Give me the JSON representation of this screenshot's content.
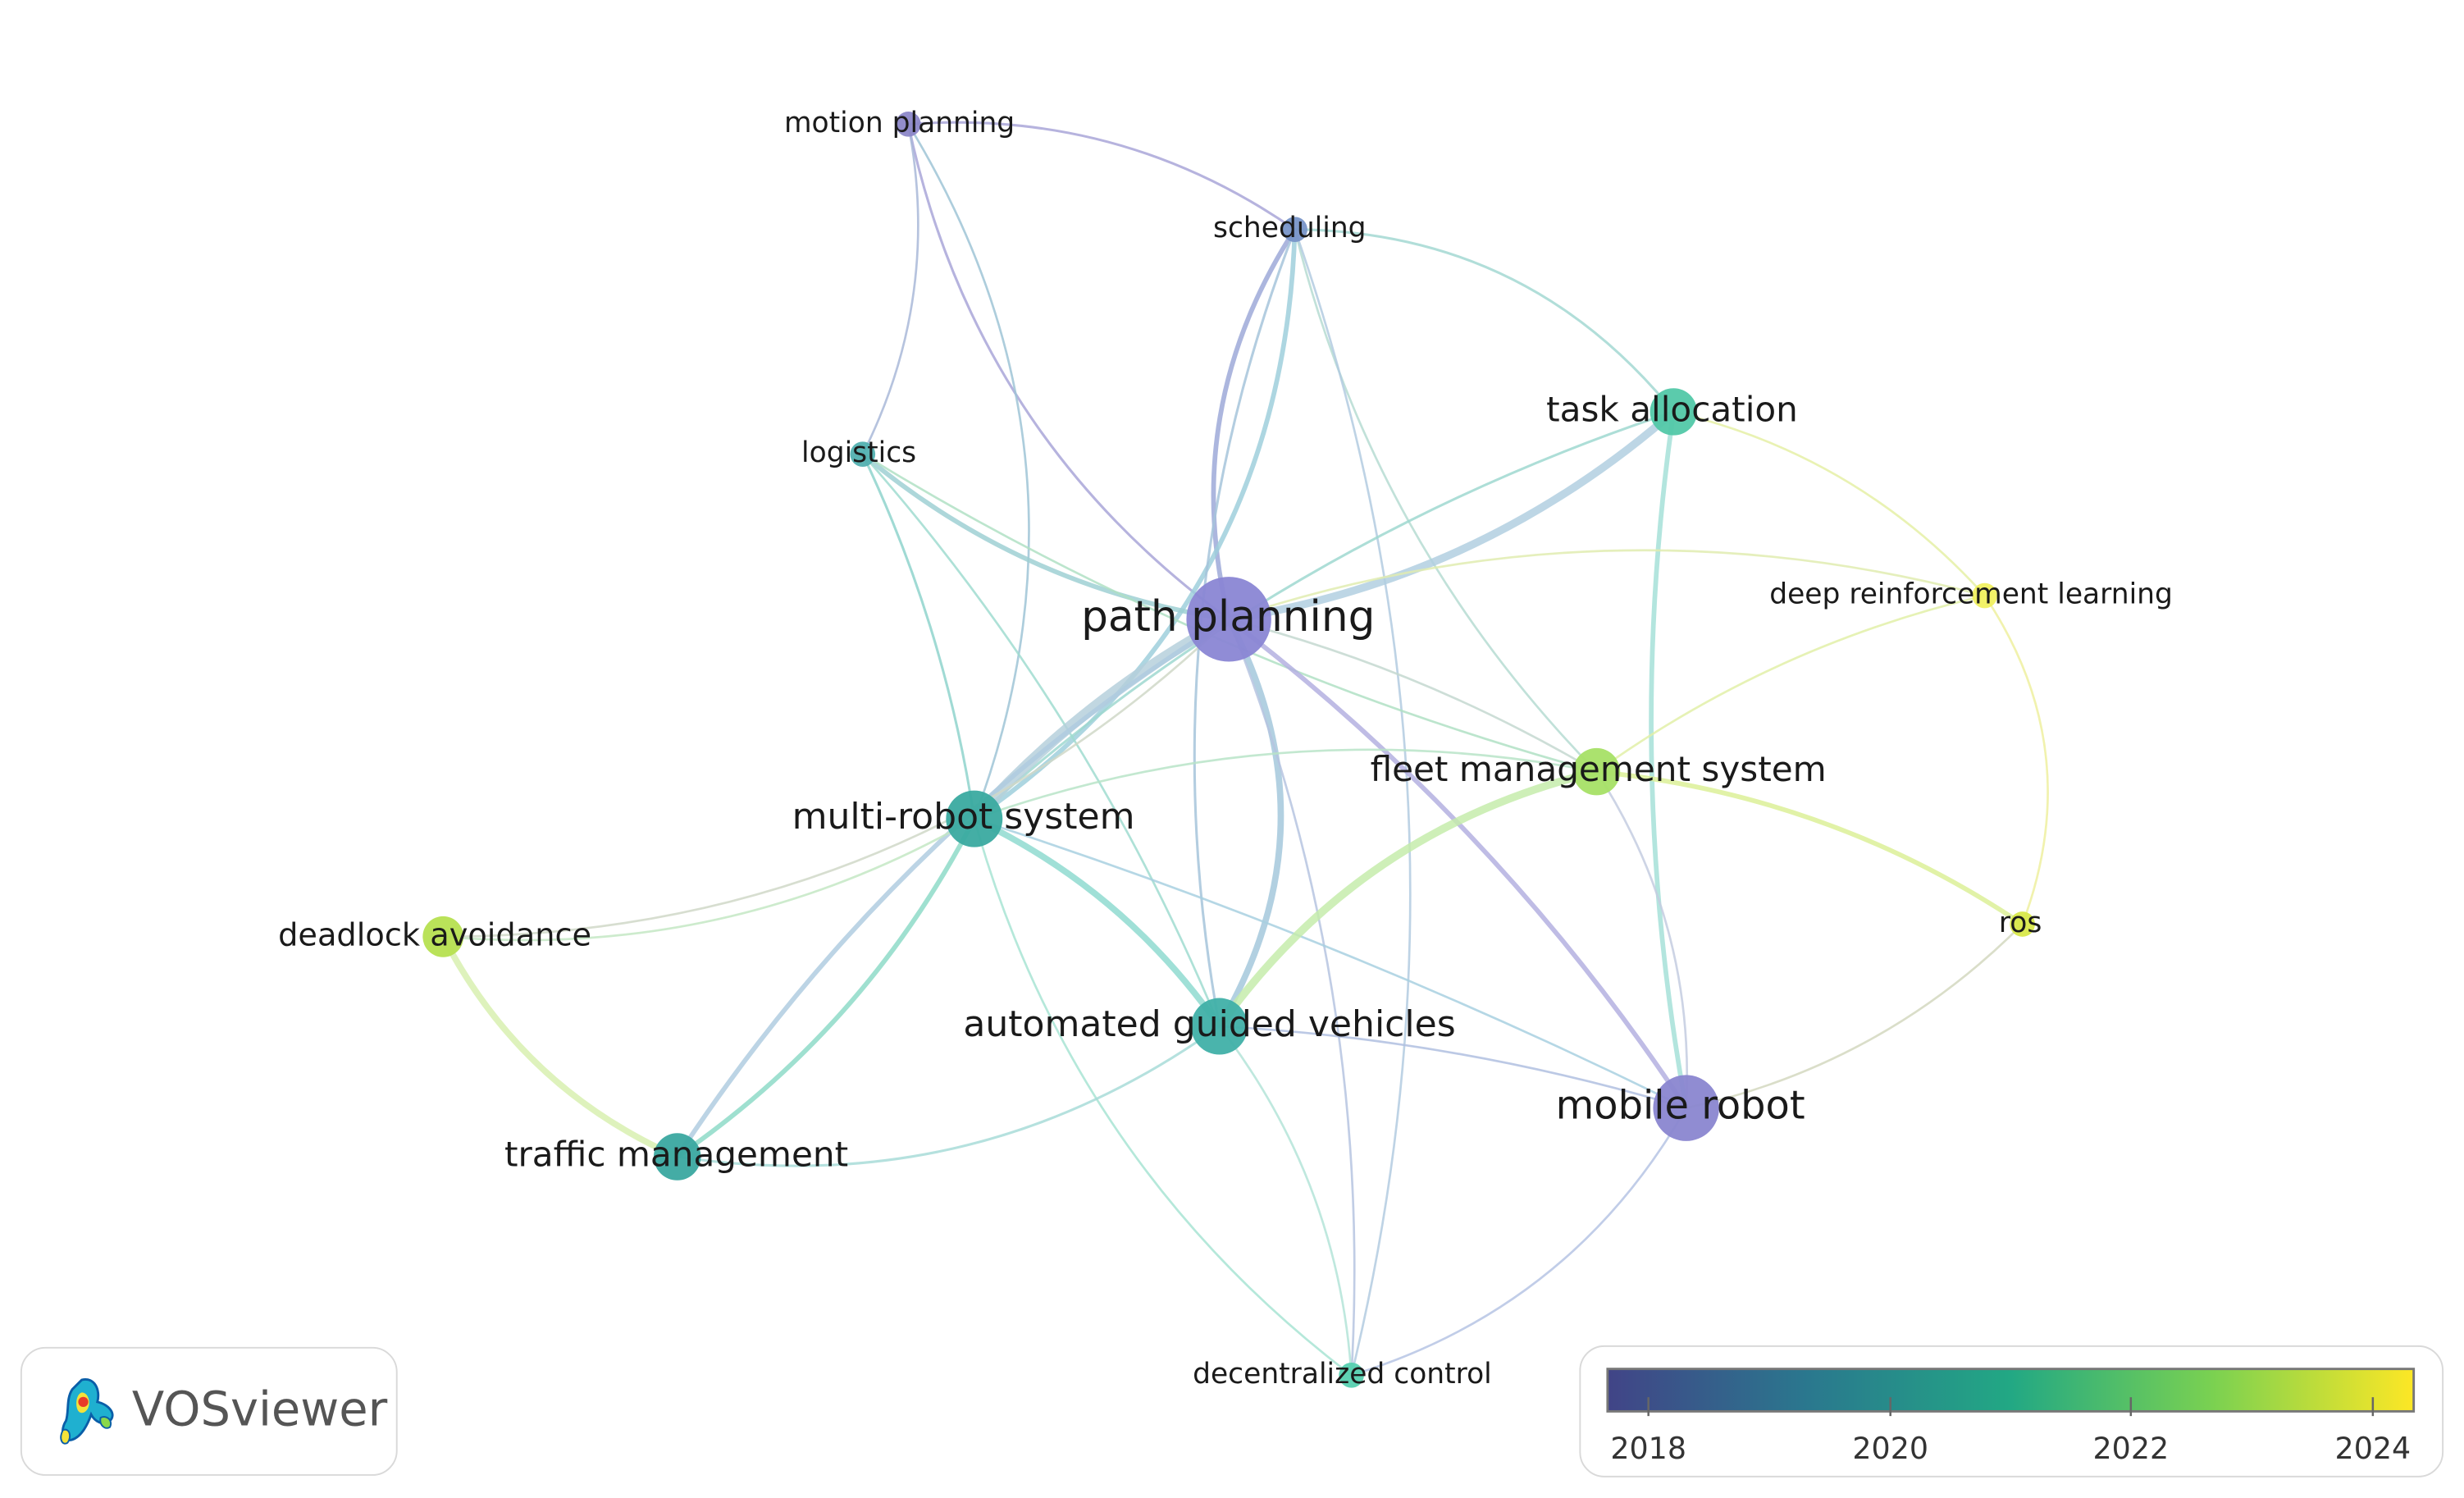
{
  "app": {
    "logo_text": "VOSviewer"
  },
  "legend": {
    "ticks": [
      "2018",
      "2020",
      "2022",
      "2024"
    ],
    "colors": [
      "#414487",
      "#2a788e",
      "#22a884",
      "#7ad151",
      "#fde725"
    ]
  },
  "network": {
    "nodes": [
      {
        "id": "motion-planning",
        "label": "motion planning",
        "color": "#8c87c8"
      },
      {
        "id": "scheduling",
        "label": "scheduling",
        "color": "#7895c8"
      },
      {
        "id": "task-allocation",
        "label": "task allocation",
        "color": "#52c8a8"
      },
      {
        "id": "logistics",
        "label": "logistics",
        "color": "#52b0b0"
      },
      {
        "id": "path-planning",
        "label": "path planning",
        "color": "#8a86d4"
      },
      {
        "id": "deep-reinforcement-learning",
        "label": "deep reinforcement learning",
        "color": "#f0f060"
      },
      {
        "id": "fleet-management-system",
        "label": "fleet management system",
        "color": "#a6e066"
      },
      {
        "id": "multi-robot-system",
        "label": "multi-robot system",
        "color": "#3aaaa0"
      },
      {
        "id": "deadlock-avoidance",
        "label": "deadlock avoidance",
        "color": "#b6e050"
      },
      {
        "id": "ros",
        "label": "ros",
        "color": "#d8e84a"
      },
      {
        "id": "automated-guided-vehicles",
        "label": "automated guided vehicles",
        "color": "#40b0a8"
      },
      {
        "id": "mobile-robot",
        "label": "mobile robot",
        "color": "#8a86d0"
      },
      {
        "id": "traffic-management",
        "label": "traffic management",
        "color": "#3aa8a0"
      },
      {
        "id": "decentralized-control",
        "label": "decentralized control",
        "color": "#56d0b0"
      }
    ]
  }
}
